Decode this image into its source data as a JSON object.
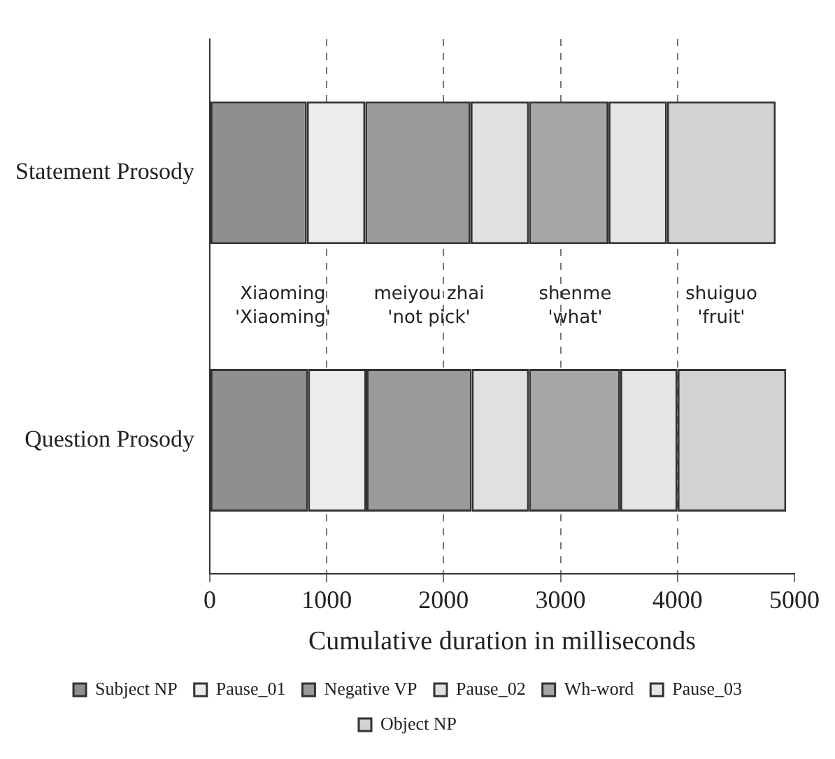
{
  "chart_data": {
    "type": "bar",
    "orientation": "horizontal",
    "stacked": true,
    "categories": [
      "Statement Prosody",
      "Question Prosody"
    ],
    "series": [
      {
        "name": "Subject NP",
        "color": "#8f8f8f",
        "values": [
          830,
          840
        ]
      },
      {
        "name": "Pause_01",
        "color": "#ececec",
        "values": [
          500,
          500
        ]
      },
      {
        "name": "Negative VP",
        "color": "#9a9a9a",
        "values": [
          900,
          900
        ]
      },
      {
        "name": "Pause_02",
        "color": "#e0e0e0",
        "values": [
          500,
          490
        ]
      },
      {
        "name": "Wh-word",
        "color": "#a6a6a6",
        "values": [
          680,
          780
        ]
      },
      {
        "name": "Pause_03",
        "color": "#e6e6e6",
        "values": [
          500,
          490
        ]
      },
      {
        "name": "Object NP",
        "color": "#d2d2d2",
        "values": [
          930,
          930
        ]
      }
    ],
    "xlabel": "Cumulative duration in milliseconds",
    "xlim": [
      0,
      5000
    ],
    "xticks": [
      0,
      1000,
      2000,
      3000,
      4000,
      5000
    ],
    "grid": "x",
    "legend": "bottom",
    "annotations": [
      "Xiaoming\n'Xiaoming'",
      "meiyou zhai\n'not pick'",
      "shenme\n'what'",
      "shuiguo\n'fruit'"
    ]
  }
}
